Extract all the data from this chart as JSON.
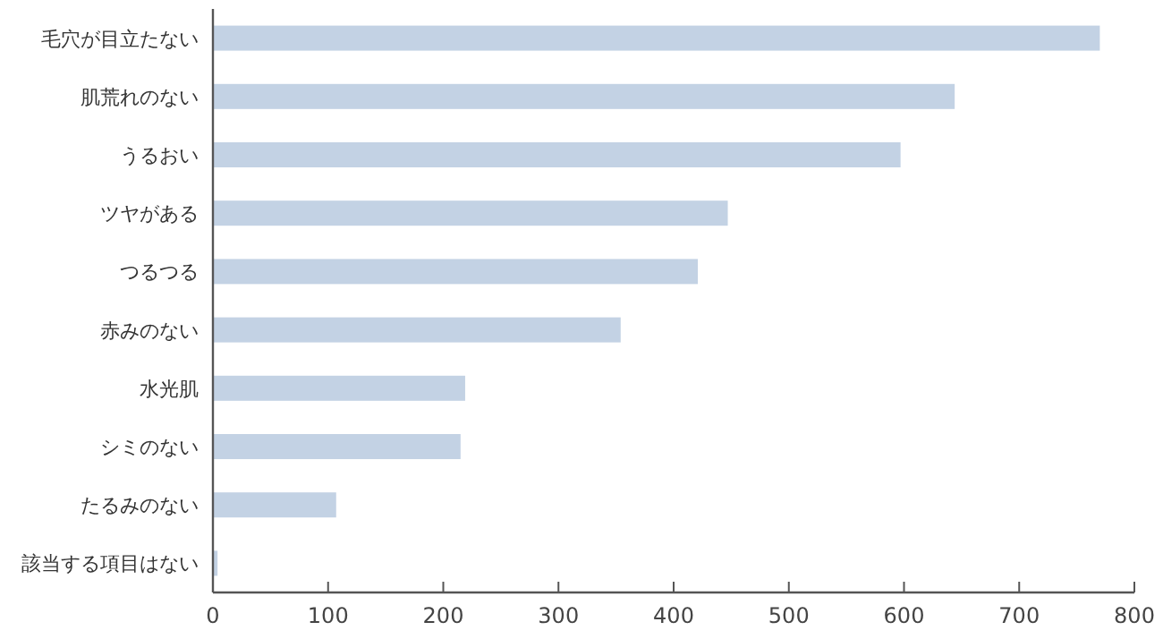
{
  "chart_data": {
    "type": "bar",
    "orientation": "horizontal",
    "categories": [
      "毛穴が目立たない",
      "肌荒れのない",
      "うるおい",
      "ツヤがある",
      "つるつる",
      "赤みのない",
      "水光肌",
      "シミのない",
      "たるみのない",
      "該当する項目はない"
    ],
    "values": [
      770,
      644,
      597,
      447,
      421,
      354,
      219,
      215,
      107,
      4
    ],
    "color": "#c3d2e4",
    "xlim": [
      0,
      800
    ],
    "xticks": [
      0,
      100,
      200,
      300,
      400,
      500,
      600,
      700,
      800
    ],
    "grid": false
  }
}
